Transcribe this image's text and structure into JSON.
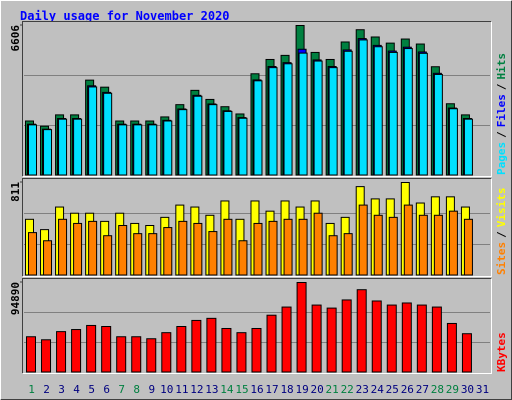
{
  "chart_data": [
    {
      "type": "bar",
      "title": "Daily usage for November 2020",
      "ylim": [
        0,
        6606
      ],
      "yticks": [
        6606
      ],
      "legend_separator": "/",
      "series": [
        {
          "name": "Hits",
          "color": "#008040",
          "values": [
            2400,
            2170,
            2670,
            2670,
            4200,
            3890,
            2400,
            2400,
            2400,
            2580,
            3120,
            3750,
            3350,
            3030,
            2710,
            4480,
            5110,
            5290,
            6606,
            5420,
            5110,
            5880,
            6420,
            6100,
            5830,
            6010,
            5790,
            4790,
            3160,
            2670,
            null
          ]
        },
        {
          "name": "Files",
          "color": "#0000ff",
          "values": [
            2260,
            2040,
            2510,
            2510,
            3950,
            3660,
            2260,
            2260,
            2260,
            2430,
            2930,
            3530,
            3150,
            2850,
            2550,
            4210,
            4800,
            4970,
            5560,
            5090,
            4800,
            5530,
            6030,
            5730,
            5480,
            5650,
            5440,
            4500,
            2970,
            2510,
            null
          ]
        },
        {
          "name": "Pages",
          "color": "#00e0ff",
          "values": [
            2230,
            2020,
            2480,
            2480,
            3900,
            3620,
            2230,
            2230,
            2230,
            2400,
            2900,
            3490,
            3120,
            2820,
            2520,
            4170,
            4750,
            4920,
            5390,
            5040,
            4750,
            5470,
            5970,
            5670,
            5420,
            5590,
            5380,
            4450,
            2940,
            2480,
            null
          ]
        }
      ]
    },
    {
      "type": "bar",
      "ylim": [
        0,
        811
      ],
      "yticks": [
        811
      ],
      "legend_separator": "/",
      "series": [
        {
          "name": "Visits",
          "color": "#ffff00",
          "values": [
            490,
            400,
            597,
            543,
            543,
            472,
            543,
            454,
            436,
            507,
            614,
            597,
            525,
            650,
            490,
            650,
            561,
            650,
            597,
            650,
            454,
            507,
            775,
            668,
            668,
            811,
            632,
            686,
            686,
            597,
            null
          ]
        },
        {
          "name": "Sites",
          "color": "#ff8000",
          "values": [
            374,
            303,
            490,
            454,
            472,
            347,
            436,
            365,
            365,
            418,
            472,
            454,
            383,
            490,
            303,
            454,
            472,
            490,
            490,
            543,
            347,
            365,
            614,
            525,
            507,
            614,
            525,
            525,
            561,
            490,
            null
          ]
        }
      ]
    },
    {
      "type": "bar",
      "ylim": [
        0,
        94890
      ],
      "yticks": [
        94890
      ],
      "categories": [
        "1",
        "2",
        "3",
        "4",
        "5",
        "6",
        "7",
        "8",
        "9",
        "10",
        "11",
        "12",
        "13",
        "14",
        "15",
        "16",
        "17",
        "18",
        "19",
        "20",
        "21",
        "22",
        "23",
        "24",
        "25",
        "26",
        "27",
        "28",
        "29",
        "30",
        "31"
      ],
      "category_colors": [
        "#008040",
        "#000080",
        "#000080",
        "#000080",
        "#000080",
        "#000080",
        "#008040",
        "#008040",
        "#000080",
        "#000080",
        "#000080",
        "#000080",
        "#000080",
        "#008040",
        "#008040",
        "#000080",
        "#000080",
        "#000080",
        "#000080",
        "#000080",
        "#008040",
        "#008040",
        "#000080",
        "#000080",
        "#000080",
        "#000080",
        "#000080",
        "#008040",
        "#008040",
        "#000080",
        "#000080"
      ],
      "series": [
        {
          "name": "KBytes",
          "color": "#ff0000",
          "values": [
            37700,
            34500,
            43100,
            45300,
            49600,
            48500,
            37700,
            37700,
            35600,
            42000,
            48500,
            54900,
            57100,
            46400,
            42000,
            46400,
            60400,
            69000,
            94890,
            71100,
            67900,
            76500,
            87300,
            75400,
            71100,
            73300,
            71100,
            69000,
            51700,
            40900,
            null
          ]
        }
      ]
    }
  ]
}
